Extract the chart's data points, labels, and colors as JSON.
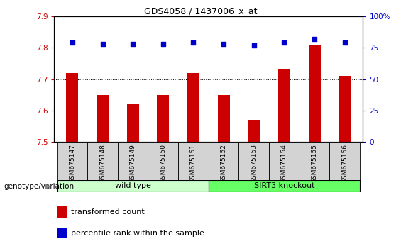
{
  "title": "GDS4058 / 1437006_x_at",
  "samples": [
    "GSM675147",
    "GSM675148",
    "GSM675149",
    "GSM675150",
    "GSM675151",
    "GSM675152",
    "GSM675153",
    "GSM675154",
    "GSM675155",
    "GSM675156"
  ],
  "transformed_count": [
    7.72,
    7.65,
    7.62,
    7.65,
    7.72,
    7.65,
    7.57,
    7.73,
    7.81,
    7.71
  ],
  "percentile_rank": [
    79,
    78,
    78,
    78,
    79,
    78,
    77,
    79,
    82,
    79
  ],
  "ylim_left": [
    7.5,
    7.9
  ],
  "ylim_right": [
    0,
    100
  ],
  "yticks_left": [
    7.5,
    7.6,
    7.7,
    7.8,
    7.9
  ],
  "yticks_right": [
    0,
    25,
    50,
    75,
    100
  ],
  "bar_color": "#cc0000",
  "dot_color": "#0000cc",
  "wild_type_count": 5,
  "knockout_count": 5,
  "wild_type_label": "wild type",
  "knockout_label": "SIRT3 knockout",
  "genotype_label": "genotype/variation",
  "legend_bar_label": "transformed count",
  "legend_dot_label": "percentile rank within the sample",
  "wild_type_color": "#ccffcc",
  "knockout_color": "#66ff66",
  "tick_color_left": "#cc0000",
  "tick_color_right": "#0000cc",
  "background_color": "#ffffff",
  "bar_width": 0.4,
  "title_fontsize": 9,
  "tick_fontsize": 7.5,
  "label_fontsize": 8
}
